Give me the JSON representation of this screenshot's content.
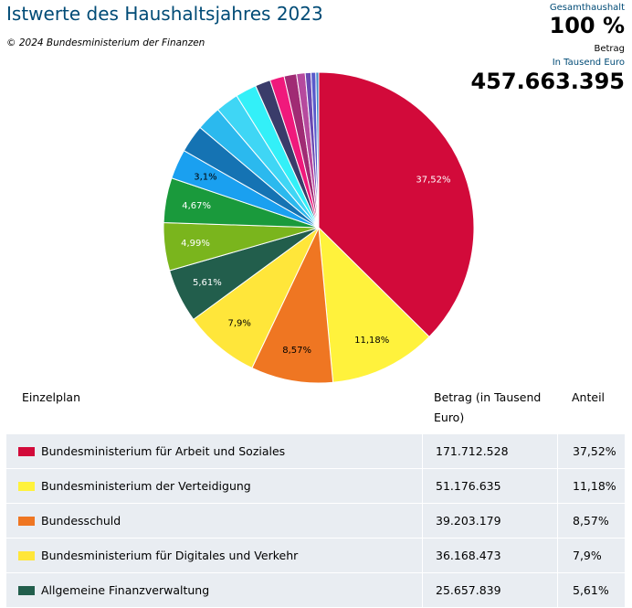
{
  "header": {
    "title": "Istwerte des Haushaltsjahres 2023",
    "copyright": "© 2024 Bundesministerium der Finanzen",
    "gesamt_label": "Gesamthaushalt",
    "gesamt_percent": "100 %",
    "betrag_label": "Betrag",
    "unit_label": "In Tausend Euro",
    "total": "457.663.395"
  },
  "table": {
    "headers": {
      "name": "Einzelplan",
      "value": "Betrag (in Tausend Euro)",
      "share": "Anteil"
    },
    "rows": [
      {
        "name": "Bundesministerium für Arbeit und Soziales",
        "value": "171.712.528",
        "share": "37,52%",
        "color": "#d20a3a"
      },
      {
        "name": "Bundesministerium der Verteidigung",
        "value": "51.176.635",
        "share": "11,18%",
        "color": "#fff23c"
      },
      {
        "name": "Bundesschuld",
        "value": "39.203.179",
        "share": "8,57%",
        "color": "#ef7622"
      },
      {
        "name": "Bundesministerium für Digitales und Verkehr",
        "value": "36.168.473",
        "share": "7,9%",
        "color": "#ffe63a"
      },
      {
        "name": "Allgemeine Finanzverwaltung",
        "value": "25.657.839",
        "share": "5,61%",
        "color": "#225e4c"
      }
    ]
  },
  "chart_data": {
    "type": "pie",
    "slices": [
      {
        "label": "37,52%",
        "value": 37.52,
        "color": "#d20a3a"
      },
      {
        "label": "11,18%",
        "value": 11.18,
        "color": "#fff23c"
      },
      {
        "label": "8,57%",
        "value": 8.57,
        "color": "#ef7622"
      },
      {
        "label": "7,9%",
        "value": 7.9,
        "color": "#ffe63a"
      },
      {
        "label": "5,61%",
        "value": 5.61,
        "color": "#225e4c"
      },
      {
        "label": "4,99%",
        "value": 4.99,
        "color": "#7ab51d"
      },
      {
        "label": "4,67%",
        "value": 4.67,
        "color": "#1a9a3c"
      },
      {
        "label": "3,1%",
        "value": 3.1,
        "color": "#1aa0f0"
      },
      {
        "label": "",
        "value": 2.9,
        "color": "#1573b3"
      },
      {
        "label": "",
        "value": 2.6,
        "color": "#2bb9ee"
      },
      {
        "label": "",
        "value": 2.4,
        "color": "#3fd6f5"
      },
      {
        "label": "",
        "value": 2.2,
        "color": "#33f0f8"
      },
      {
        "label": "",
        "value": 1.6,
        "color": "#3a3c6a"
      },
      {
        "label": "",
        "value": 1.5,
        "color": "#f0197c"
      },
      {
        "label": "",
        "value": 1.3,
        "color": "#a02b74"
      },
      {
        "label": "",
        "value": 0.9,
        "color": "#b64a9e"
      },
      {
        "label": "",
        "value": 0.6,
        "color": "#6a49b2"
      },
      {
        "label": "",
        "value": 0.5,
        "color": "#5a5acb"
      },
      {
        "label": "",
        "value": 0.3,
        "color": "#4287c8"
      }
    ]
  }
}
